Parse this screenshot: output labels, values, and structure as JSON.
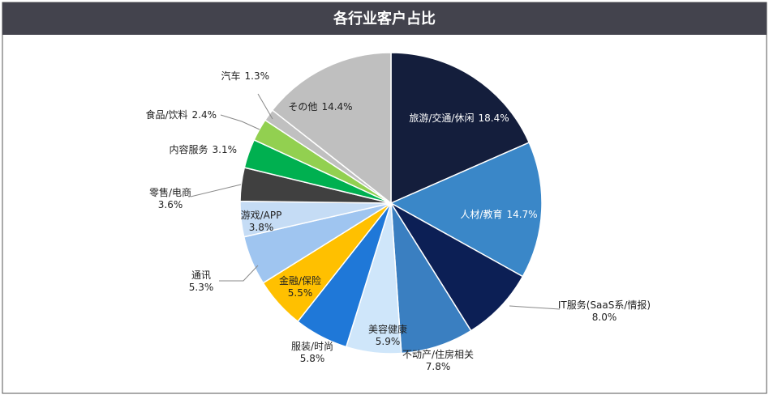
{
  "chart_data": {
    "type": "pie",
    "title": "各行业客户占比",
    "categories": [
      "旅游/交通/休闲",
      "人材/教育",
      "IT服务(SaaS系/情报)",
      "不动产/住房相关",
      "美容健康",
      "服装/时尚",
      "金融/保险",
      "通讯",
      "游戏/APP",
      "零售/电商",
      "内容服务",
      "食品/饮料",
      "汽车",
      "その他"
    ],
    "values": [
      18.4,
      14.7,
      8.0,
      7.8,
      5.9,
      5.8,
      5.5,
      5.3,
      3.8,
      3.6,
      3.1,
      2.4,
      1.3,
      14.4
    ],
    "value_labels": [
      "18.4%",
      "14.7%",
      "8.0%",
      "7.8%",
      "5.9%",
      "5.8%",
      "5.5%",
      "5.3%",
      "3.8%",
      "3.6%",
      "3.1%",
      "2.4%",
      "1.3%",
      "14.4%"
    ],
    "colors": [
      "#141e3c",
      "#3a87c8",
      "#0c1f55",
      "#3a7fc1",
      "#cfe6fa",
      "#1f78d8",
      "#ffc000",
      "#9fc5f0",
      "#c5dcf5",
      "#404040",
      "#00b050",
      "#92d050",
      "#c0c0c0",
      "#bfbfbf"
    ]
  }
}
